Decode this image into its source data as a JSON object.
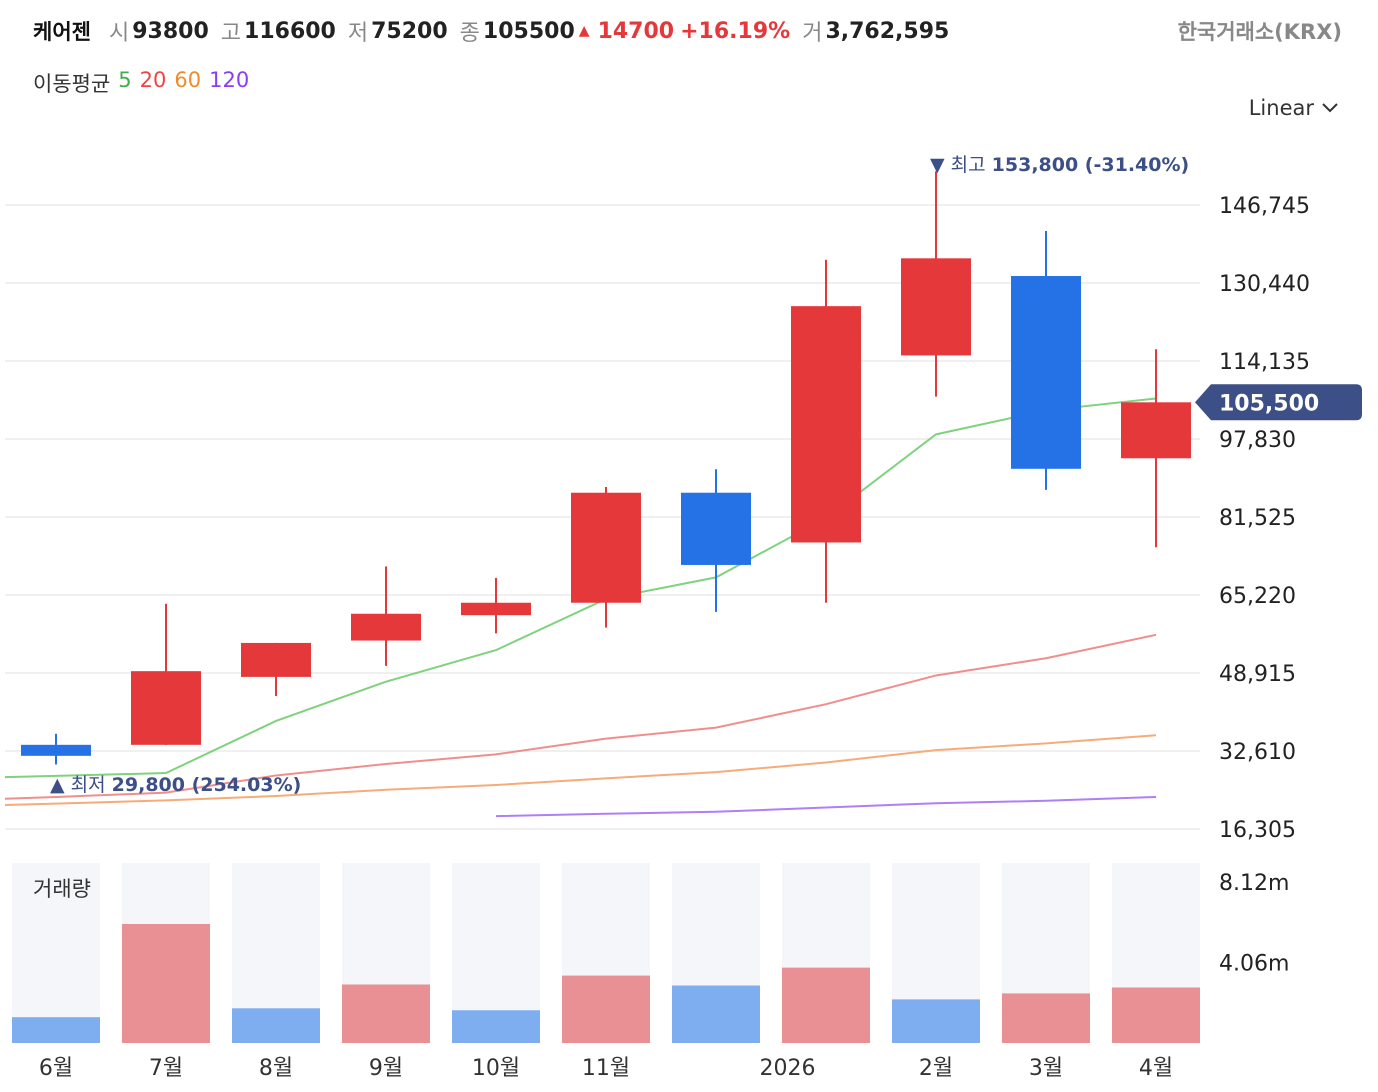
{
  "header": {
    "name": "케어젠",
    "open_label": "시",
    "open": "93800",
    "high_label": "고",
    "high": "116600",
    "low_label": "저",
    "low": "75200",
    "close_label": "종",
    "close": "105500",
    "change_arrow": "▲",
    "change": "14700",
    "change_pct": "+16.19%",
    "volume_label": "거",
    "volume": "3,762,595",
    "exchange": "한국거래소(KRX)"
  },
  "ma_legend": {
    "title": "이동평균",
    "periods": [
      "5",
      "20",
      "60",
      "120"
    ],
    "colors": [
      "#3fae49",
      "#ef4444",
      "#f08a2c",
      "#8b3cf6"
    ]
  },
  "scale_selector": {
    "label": "Linear",
    "icon": "chevron-down-icon"
  },
  "colors": {
    "up": "#e5383b",
    "down": "#2572e6",
    "vol_up": "#e99095",
    "vol_down": "#7eadf0",
    "ma5": "#7fd27e",
    "ma20": "#f08e8e",
    "ma60": "#f5ac78",
    "ma120": "#b07ef5",
    "badge": "#3c4f87"
  },
  "chart_data": {
    "type": "candlestick",
    "months": [
      "6월",
      "7월",
      "8월",
      "9월",
      "10월",
      "11월",
      "12월",
      "2026",
      "2월",
      "3월",
      "4월"
    ],
    "x_tick_labels": [
      "6월",
      "7월",
      "8월",
      "9월",
      "10월",
      "11월",
      "2026",
      "2월",
      "3월",
      "4월"
    ],
    "candles": [
      {
        "open": 33900,
        "high": 36200,
        "low": 29800,
        "close": 31600
      },
      {
        "open": 33900,
        "high": 63400,
        "low": 33900,
        "close": 49300
      },
      {
        "open": 48100,
        "high": 55200,
        "low": 44100,
        "close": 55200
      },
      {
        "open": 55700,
        "high": 71200,
        "low": 50400,
        "close": 61300
      },
      {
        "open": 61000,
        "high": 68800,
        "low": 57200,
        "close": 63600
      },
      {
        "open": 63600,
        "high": 87800,
        "low": 58400,
        "close": 86600
      },
      {
        "open": 86600,
        "high": 91500,
        "low": 61700,
        "close": 71500
      },
      {
        "open": 76200,
        "high": 135300,
        "low": 63600,
        "close": 125600
      },
      {
        "open": 115300,
        "high": 153800,
        "low": 106700,
        "close": 135600
      },
      {
        "open": 131900,
        "high": 141300,
        "low": 87200,
        "close": 91600
      },
      {
        "open": 93800,
        "high": 116600,
        "low": 75200,
        "close": 105500
      }
    ],
    "moving_averages": [
      {
        "period": "5",
        "values": [
          27400,
          28000,
          38900,
          47100,
          53700,
          64400,
          68900,
          81300,
          98800,
          103800,
          106300
        ]
      },
      {
        "period": "20",
        "values": [
          23000,
          23900,
          27500,
          29900,
          31900,
          35200,
          37500,
          42400,
          48400,
          52000,
          56900
        ]
      },
      {
        "period": "60",
        "values": [
          21600,
          22300,
          23200,
          24500,
          25500,
          26900,
          28200,
          30200,
          32800,
          34200,
          35900
        ]
      },
      {
        "period": "120",
        "values": [
          null,
          null,
          null,
          null,
          19000,
          19500,
          19900,
          20800,
          21700,
          22200,
          23000
        ]
      }
    ],
    "volume": {
      "values": [
        1300000,
        6000000,
        1750000,
        2950000,
        1650000,
        3400000,
        2900000,
        3800000,
        2200000,
        2500000,
        2800000
      ],
      "direction": [
        "down",
        "up",
        "down",
        "up",
        "down",
        "up",
        "down",
        "up",
        "down",
        "up",
        "up"
      ],
      "y_ticks": [
        "8.12m",
        "4.06m"
      ],
      "tick_values": [
        8120000,
        4060000
      ],
      "label": "거래량"
    },
    "y_ticks": [
      146745,
      130440,
      114135,
      97830,
      81525,
      65220,
      48915,
      32610,
      16305
    ],
    "y_tick_labels": [
      "146,745",
      "130,440",
      "114,135",
      "97,830",
      "81,525",
      "65,220",
      "48,915",
      "32,610",
      "16,305"
    ],
    "ylim": [
      16305,
      162000
    ],
    "current_price": 105500,
    "current_price_label": "105,500",
    "annotations": {
      "high": {
        "arrow": "▼",
        "label": "최고",
        "value": "153,800",
        "pct": "(-31.40%)"
      },
      "low": {
        "arrow": "▲",
        "label": "최저",
        "value": "29,800",
        "pct": "(254.03%)"
      }
    }
  }
}
